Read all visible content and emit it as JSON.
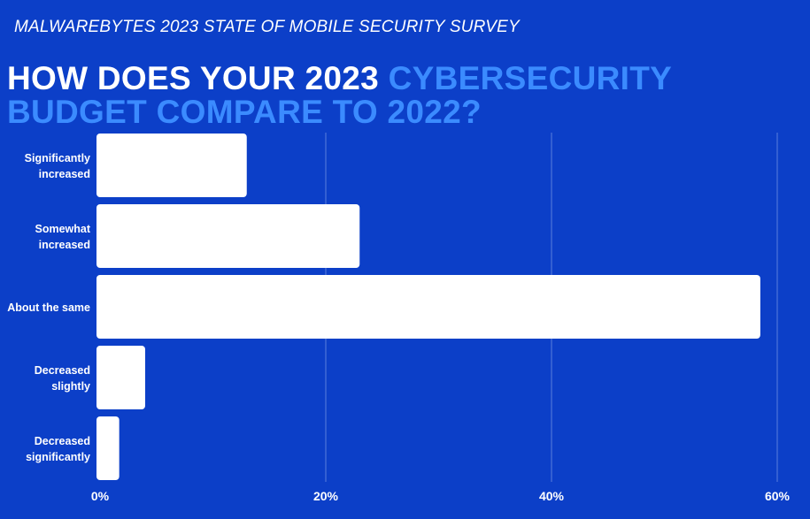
{
  "header": {
    "subtitle": "MALWAREBYTES 2023 STATE OF MOBILE SECURITY SURVEY",
    "title_part1": "HOW DOES YOUR 2023 ",
    "title_part2": "CYBERSECURITY BUDGET COMPARE TO 2022?"
  },
  "colors": {
    "background": "#0c3fc8",
    "accent": "#3b8bff",
    "bar": "#ffffff",
    "grid": "#5a7fdc"
  },
  "chart_data": {
    "type": "bar",
    "orientation": "horizontal",
    "title": "HOW DOES YOUR 2023 CYBERSECURITY BUDGET COMPARE TO 2022?",
    "categories": [
      [
        "Significantly",
        "increased"
      ],
      [
        "Somewhat",
        "increased"
      ],
      [
        "About the same"
      ],
      [
        "Decreased",
        "slightly"
      ],
      [
        "Decreased",
        "significantly"
      ]
    ],
    "values": [
      13,
      23,
      58.5,
      4,
      1.7
    ],
    "xlabel": "",
    "ylabel": "",
    "xlim": [
      0,
      60
    ],
    "xticks": [
      0,
      20,
      40,
      60
    ],
    "xtick_labels": [
      "0%",
      "20%",
      "40%",
      "60%"
    ],
    "grid": true
  }
}
